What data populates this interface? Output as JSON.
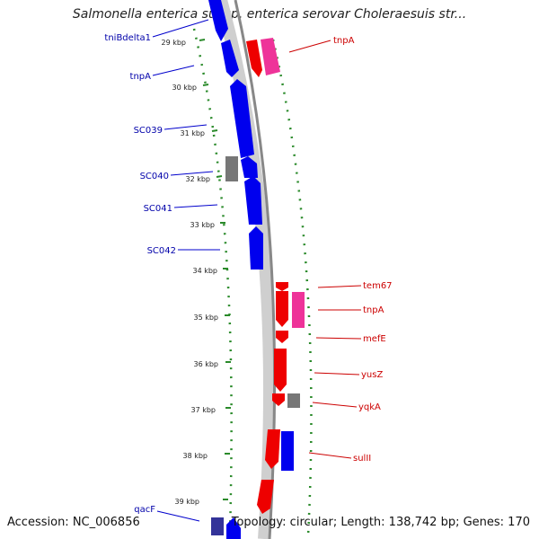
{
  "title": "Salmonella enterica subsp. enterica serovar Choleraesuis str...",
  "footer": {
    "accession": "Accession: NC_006856",
    "topology": "Topology: circular; Length: 138,742 bp; Genes: 170"
  },
  "colors": {
    "forward_cds": "#0000ee",
    "reverse_cds": "#ee0000",
    "mobile_element": "#ee3399",
    "other": "#777777",
    "tick_dots": "#2a8a2a",
    "backbone": "#888888"
  },
  "ticks": [
    "29 kbp",
    "30 kbp",
    "31 kbp",
    "32 kbp",
    "33 kbp",
    "34 kbp",
    "35 kbp",
    "36 kbp",
    "37 kbp",
    "38 kbp",
    "39 kbp"
  ],
  "left_labels": [
    "tniBdelta1",
    "tnpA",
    "SC039",
    "SC040",
    "SC041",
    "SC042",
    "qacF"
  ],
  "right_labels": [
    "tnpA",
    "tem67",
    "tnpA",
    "mefE",
    "yusZ",
    "yqkA",
    "sulII"
  ]
}
